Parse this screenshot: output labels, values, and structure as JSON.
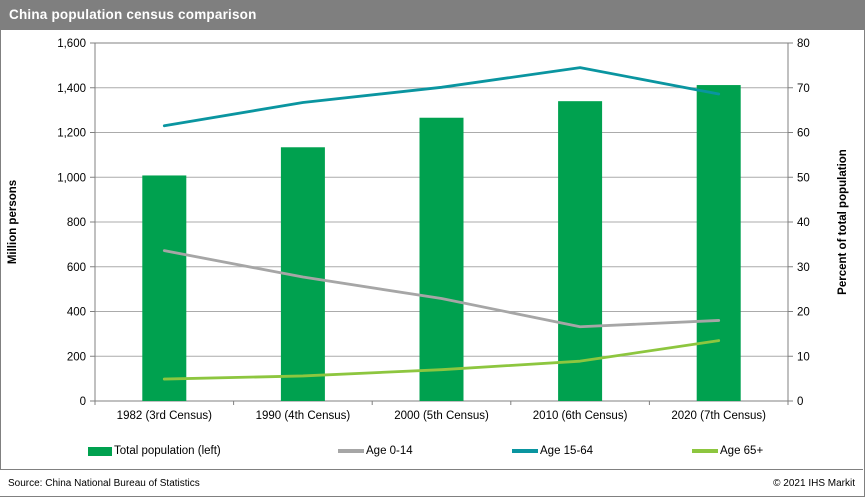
{
  "title": "China population census comparison",
  "footer": {
    "source": "Source: China National Bureau of Statistics",
    "copyright": "© 2021  IHS Markit"
  },
  "colors": {
    "title_bar": "#7F7F7F",
    "bar_green": "#00A14F",
    "line_gray": "#A6A6A6",
    "line_teal": "#0A95A0",
    "line_lightgreen": "#8DC63F",
    "gridline": "#ABABAB",
    "axis_frame": "#808080"
  },
  "legend": [
    {
      "label": "Total population (left)",
      "type": "bar",
      "color": "#00A14F"
    },
    {
      "label": "Age 0-14",
      "type": "line",
      "color": "#A6A6A6"
    },
    {
      "label": "Age 15-64",
      "type": "line",
      "color": "#0A95A0"
    },
    {
      "label": "Age 65+",
      "type": "line",
      "color": "#8DC63F"
    }
  ],
  "chart_data": {
    "type": "bar+line combo",
    "title": "China population census comparison",
    "categories": [
      "1982 (3rd Census)",
      "1990 (4th Census)",
      "2000 (5th Census)",
      "2010 (6th Census)",
      "2020 (7th Census)"
    ],
    "bar_series": {
      "name": "Total population (left)",
      "axis": "left",
      "color": "#00A14F",
      "values": [
        1008,
        1134,
        1266,
        1340,
        1412
      ]
    },
    "line_series": [
      {
        "name": "Age 0-14",
        "axis": "right",
        "color": "#A6A6A6",
        "values": [
          33.6,
          27.7,
          22.9,
          16.6,
          18.0
        ]
      },
      {
        "name": "Age 15-64",
        "axis": "right",
        "color": "#0A95A0",
        "values": [
          61.5,
          66.7,
          70.1,
          74.5,
          68.6
        ]
      },
      {
        "name": "Age 65+",
        "axis": "right",
        "color": "#8DC63F",
        "values": [
          4.9,
          5.6,
          7.0,
          8.9,
          13.5
        ]
      }
    ],
    "left_axis": {
      "label": "Million persons",
      "min": 0,
      "max": 1600,
      "step": 200
    },
    "right_axis": {
      "label": "Percent of total population",
      "min": 0,
      "max": 80,
      "step": 10
    },
    "grid": true,
    "legend_position": "bottom"
  }
}
